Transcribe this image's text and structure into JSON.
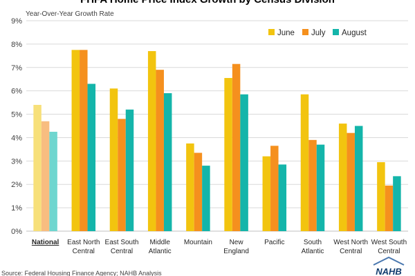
{
  "chart_data": {
    "type": "bar",
    "title": "FHFA Home Price Index Growth by Census Division",
    "ylabel": "Year-Over-Year Growth Rate",
    "xlabel": "",
    "ylim": [
      0,
      9
    ],
    "yticks": [
      "0%",
      "1%",
      "2%",
      "3%",
      "4%",
      "5%",
      "6%",
      "7%",
      "8%",
      "9%"
    ],
    "grid": true,
    "legend_position": "top-right",
    "categories": [
      [
        "National"
      ],
      [
        "East North",
        "Central"
      ],
      [
        "East South",
        "Central"
      ],
      [
        "Middle",
        "Atlantic"
      ],
      [
        "Mountain"
      ],
      [
        "New",
        "England"
      ],
      [
        "Pacific"
      ],
      [
        "South",
        "Atlantic"
      ],
      [
        "West North",
        "Central"
      ],
      [
        "West South",
        "Central"
      ]
    ],
    "series": [
      {
        "name": "June",
        "color": "#f2c40f",
        "light_color": "#f7e07a",
        "values": [
          5.4,
          7.75,
          6.1,
          7.7,
          3.75,
          6.55,
          3.2,
          5.85,
          4.6,
          2.95
        ]
      },
      {
        "name": "July",
        "color": "#f5901e",
        "light_color": "#f8bd80",
        "values": [
          4.7,
          7.75,
          4.8,
          6.9,
          3.35,
          7.15,
          3.65,
          3.9,
          4.2,
          1.95
        ]
      },
      {
        "name": "August",
        "color": "#14b5aa",
        "light_color": "#6fd6cf",
        "values": [
          4.25,
          6.3,
          5.2,
          5.9,
          2.8,
          5.85,
          2.85,
          3.7,
          4.5,
          2.35
        ]
      }
    ],
    "highlighted_category": "National",
    "source": "Source: Federal Housing Finance Agency; NAHB Analysis",
    "logo": "NAHB"
  }
}
